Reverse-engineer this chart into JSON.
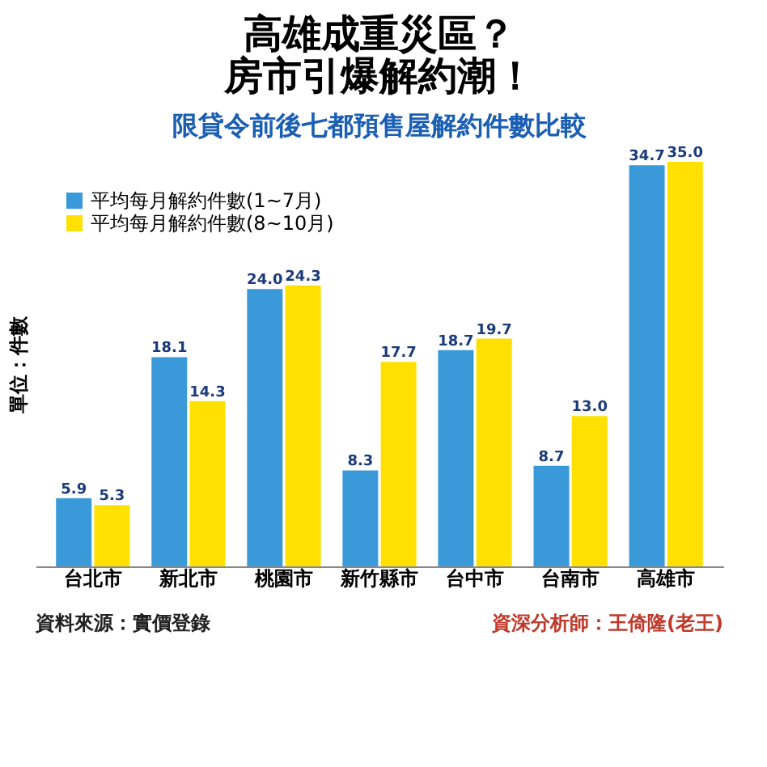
{
  "chart_data": {
    "type": "bar",
    "title": [
      "高雄成重災區？",
      "房市引爆解約潮！"
    ],
    "subtitle": "限貸令前後七都預售屋解約件數比較",
    "ylabel": "單位：件數",
    "categories": [
      "台北市",
      "新北市",
      "桃園市",
      "新竹縣市",
      "台中市",
      "台南市",
      "高雄市"
    ],
    "series": [
      {
        "name": "平均每月解約件數(1~7月)",
        "color": "#3a9ad9",
        "values": [
          5.9,
          18.1,
          24.0,
          8.3,
          18.7,
          8.7,
          34.7
        ],
        "value_labels": [
          "5.9",
          "18.1",
          "24.0",
          "8.3",
          "18.7",
          "8.7",
          "34.7"
        ]
      },
      {
        "name": "平均每月解約件數(8~10月)",
        "color": "#ffe000",
        "values": [
          5.3,
          14.3,
          24.3,
          17.7,
          19.7,
          13.0,
          35.0
        ],
        "value_labels": [
          "5.3",
          "14.3",
          "24.3",
          "17.7",
          "19.7",
          "13.0",
          "35.0"
        ]
      }
    ],
    "legend": "top left",
    "grid": false,
    "annotations": [
      "資料來源：實價登錄",
      "資深分析師：王倚隆(老王)"
    ]
  }
}
